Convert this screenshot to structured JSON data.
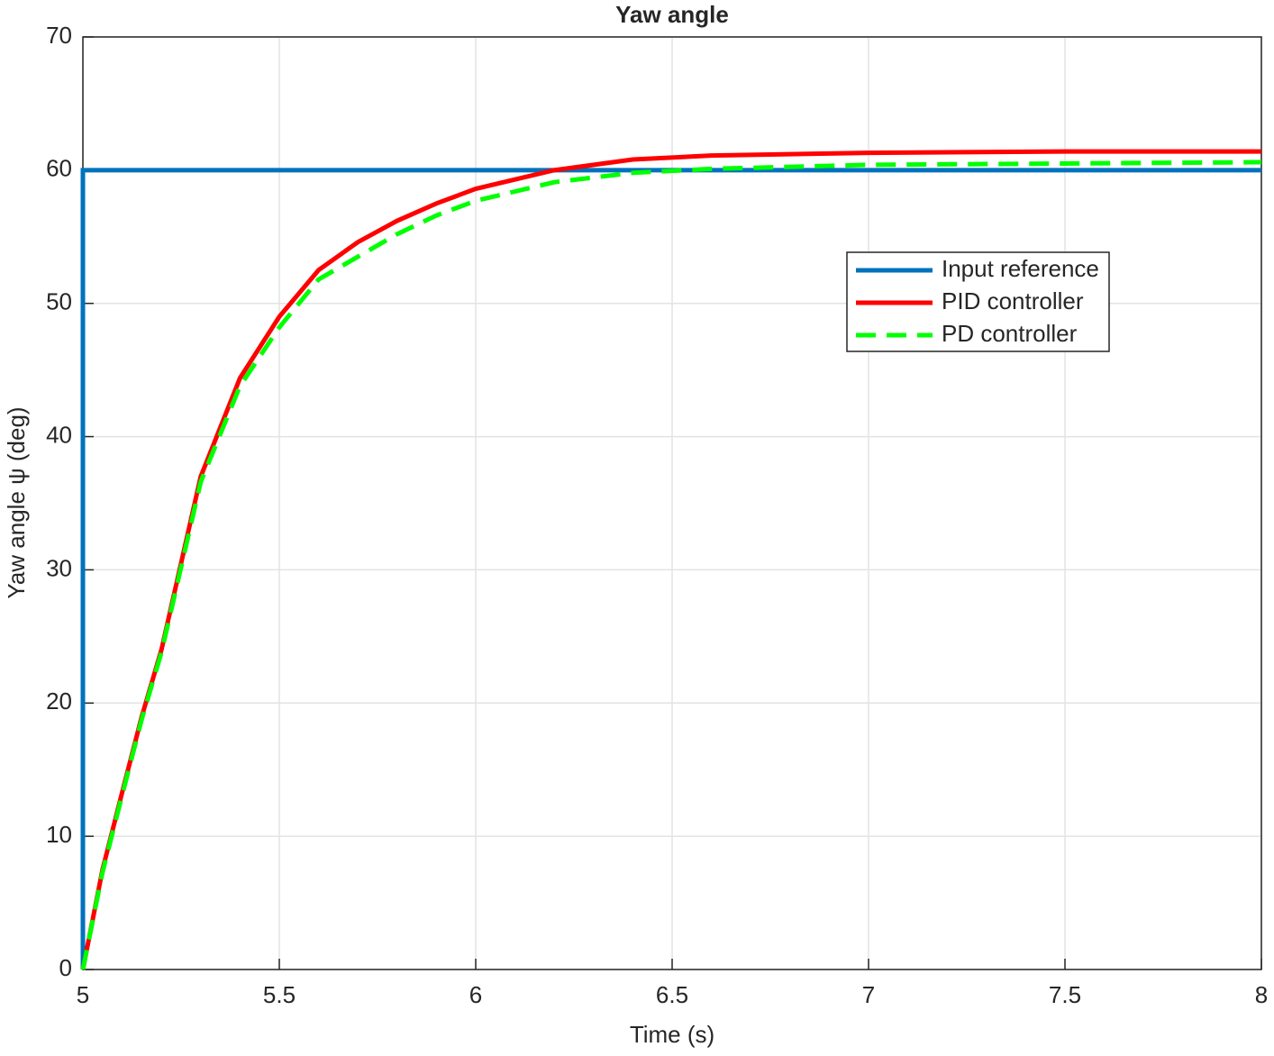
{
  "chart_data": {
    "type": "line",
    "title": "Yaw angle",
    "x_label": "Time (s)",
    "y_label": "Yaw angle ψ (deg)",
    "xlim": [
      5,
      8
    ],
    "xticks": [
      5,
      5.5,
      6,
      6.5,
      7,
      7.5,
      8
    ],
    "ylim": [
      0,
      70
    ],
    "yticks": [
      0,
      10,
      20,
      30,
      40,
      50,
      60,
      70
    ],
    "grid": true,
    "legend": "right",
    "series": [
      {
        "name": "Input reference",
        "color": "#0072bd",
        "dash": false,
        "x": [
          5,
          5,
          8
        ],
        "values": [
          0,
          60,
          60
        ]
      },
      {
        "name": "PID controller",
        "color": "#ff0000",
        "dash": false,
        "x": [
          5,
          5.05,
          5.1,
          5.15,
          5.2,
          5.3,
          5.4,
          5.5,
          5.6,
          5.7,
          5.8,
          5.9,
          6,
          6.2,
          6.4,
          6.6,
          7,
          7.5,
          8
        ],
        "values": [
          0,
          7.5,
          13.3,
          19,
          24,
          37,
          44.4,
          49,
          52.5,
          54.6,
          56.2,
          57.5,
          58.6,
          60,
          60.8,
          61.1,
          61.3,
          61.4,
          61.4
        ]
      },
      {
        "name": "PD controller",
        "color": "#00ff00",
        "dash": true,
        "x": [
          5,
          5.05,
          5.1,
          5.15,
          5.2,
          5.3,
          5.4,
          5.5,
          5.6,
          5.7,
          5.8,
          5.9,
          6,
          6.2,
          6.4,
          6.6,
          7,
          7.5,
          8
        ],
        "values": [
          0,
          7.3,
          13.1,
          18.8,
          23.8,
          36.6,
          43.8,
          48.2,
          51.8,
          53.5,
          55.2,
          56.6,
          57.7,
          59.1,
          59.8,
          60.1,
          60.4,
          60.5,
          60.6
        ]
      }
    ]
  }
}
